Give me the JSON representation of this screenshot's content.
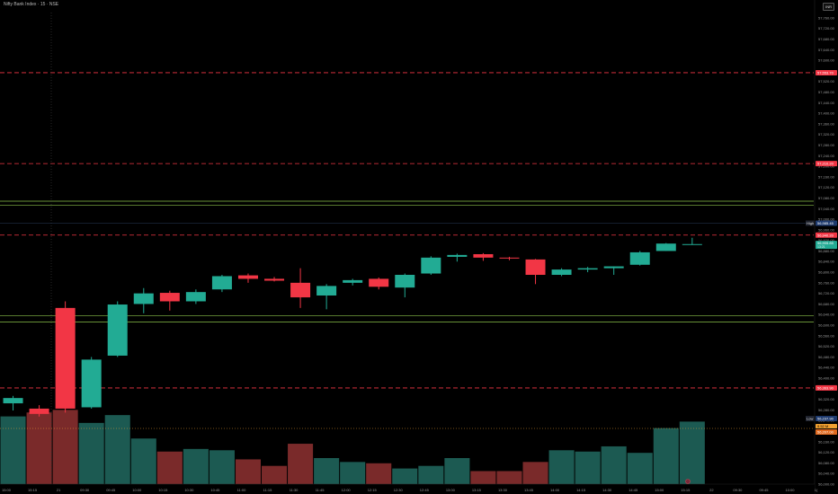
{
  "header": {
    "title": "Nifty Bank Index · 15 · NSE",
    "currency": "INR"
  },
  "colors": {
    "up": "#22ab94",
    "down": "#f23645",
    "vol_up": "#1c5a52",
    "vol_down": "#7a2a2a",
    "level_line": "#f23645",
    "zone_line": "#8bc34a"
  },
  "chart_data": {
    "type": "candlestick",
    "ylim": [
      56000,
      57800
    ],
    "y_ticks": [
      "57,760.00",
      "57,720.00",
      "57,680.00",
      "57,640.00",
      "57,600.00",
      "57,560.00",
      "57,520.00",
      "57,480.00",
      "57,440.00",
      "57,400.00",
      "57,360.00",
      "57,320.00",
      "57,280.00",
      "57,240.00",
      "57,200.00",
      "57,160.00",
      "57,120.00",
      "57,080.00",
      "57,040.00",
      "57,000.00",
      "56,960.00",
      "56,920.00",
      "56,880.00",
      "56,840.00",
      "56,800.00",
      "56,760.00",
      "56,720.00",
      "56,680.00",
      "56,640.00",
      "56,600.00",
      "56,560.00",
      "56,520.00",
      "56,480.00",
      "56,440.00",
      "56,400.00",
      "56,360.00",
      "56,320.00",
      "56,280.00",
      "56,240.00",
      "56,200.00",
      "56,160.00",
      "56,120.00",
      "56,080.00",
      "56,040.00",
      "56,000.00"
    ],
    "x_ticks": [
      "15:00",
      "15:15",
      "21",
      "09:30",
      "09:45",
      "10:00",
      "10:15",
      "10:30",
      "10:45",
      "11:00",
      "11:15",
      "11:30",
      "11:45",
      "12:00",
      "12:15",
      "12:30",
      "12:45",
      "13:00",
      "13:15",
      "13:30",
      "13:45",
      "14:00",
      "14:15",
      "14:30",
      "14:45",
      "15:00",
      "15:15",
      "22",
      "09:30",
      "09:45",
      "10:00",
      "1("
    ],
    "candles": [
      {
        "o": 56305,
        "h": 56333,
        "l": 56278,
        "c": 56325
      },
      {
        "o": 56285,
        "h": 56298,
        "l": 56255,
        "c": 56265
      },
      {
        "o": 56665,
        "h": 56690,
        "l": 56270,
        "c": 56285
      },
      {
        "o": 56290,
        "h": 56480,
        "l": 56285,
        "c": 56470
      },
      {
        "o": 56485,
        "h": 56690,
        "l": 56480,
        "c": 56678
      },
      {
        "o": 56680,
        "h": 56740,
        "l": 56645,
        "c": 56720
      },
      {
        "o": 56722,
        "h": 56730,
        "l": 56655,
        "c": 56690
      },
      {
        "o": 56690,
        "h": 56735,
        "l": 56680,
        "c": 56725
      },
      {
        "o": 56735,
        "h": 56790,
        "l": 56725,
        "c": 56785
      },
      {
        "o": 56788,
        "h": 56795,
        "l": 56760,
        "c": 56775
      },
      {
        "o": 56775,
        "h": 56782,
        "l": 56765,
        "c": 56768
      },
      {
        "o": 56760,
        "h": 56815,
        "l": 56665,
        "c": 56705
      },
      {
        "o": 56712,
        "h": 56755,
        "l": 56660,
        "c": 56748
      },
      {
        "o": 56760,
        "h": 56775,
        "l": 56750,
        "c": 56770
      },
      {
        "o": 56775,
        "h": 56780,
        "l": 56735,
        "c": 56745
      },
      {
        "o": 56742,
        "h": 56795,
        "l": 56705,
        "c": 56790
      },
      {
        "o": 56795,
        "h": 56860,
        "l": 56790,
        "c": 56855
      },
      {
        "o": 56858,
        "h": 56870,
        "l": 56840,
        "c": 56865
      },
      {
        "o": 56868,
        "h": 56872,
        "l": 56843,
        "c": 56855
      },
      {
        "o": 56855,
        "h": 56858,
        "l": 56845,
        "c": 56852
      },
      {
        "o": 56848,
        "h": 56850,
        "l": 56755,
        "c": 56790
      },
      {
        "o": 56790,
        "h": 56815,
        "l": 56785,
        "c": 56810
      },
      {
        "o": 56810,
        "h": 56820,
        "l": 56800,
        "c": 56815
      },
      {
        "o": 56815,
        "h": 56822,
        "l": 56790,
        "c": 56822
      },
      {
        "o": 56828,
        "h": 56880,
        "l": 56825,
        "c": 56875
      },
      {
        "o": 56880,
        "h": 56910,
        "l": 56880,
        "c": 56908
      },
      {
        "o": 56905,
        "h": 56930,
        "l": 56903,
        "c": 56906
      }
    ],
    "volume": [
      0.52,
      0.55,
      0.57,
      0.47,
      0.53,
      0.35,
      0.25,
      0.27,
      0.26,
      0.19,
      0.14,
      0.31,
      0.2,
      0.17,
      0.16,
      0.12,
      0.14,
      0.2,
      0.1,
      0.1,
      0.17,
      0.26,
      0.25,
      0.29,
      0.24,
      0.43,
      0.48
    ],
    "horizontal_levels": [
      {
        "price": 57553,
        "label": "57,553.70",
        "style": "dashed"
      },
      {
        "price": 57210,
        "label": "57,210.20",
        "style": "dashed"
      },
      {
        "price": 56940,
        "label": "56,940.20",
        "style": "dashed"
      },
      {
        "price": 56363,
        "label": "56,363.90",
        "style": "dashed"
      }
    ],
    "zones": [
      {
        "top": 57068,
        "bottom": 57053
      },
      {
        "top": 56636,
        "bottom": 56612
      }
    ],
    "markers": {
      "high": {
        "price": 56985,
        "tag": "High",
        "label": "56,985.45"
      },
      "low": {
        "price": 56237,
        "tag": "Low",
        "label": "56,237.90"
      },
      "current": {
        "price": 56905,
        "label": "56,905.85",
        "sub": "13:21"
      },
      "volume_tag": {
        "label": "9.52 M"
      },
      "avg_tag": {
        "label": "56,207.00"
      }
    }
  }
}
